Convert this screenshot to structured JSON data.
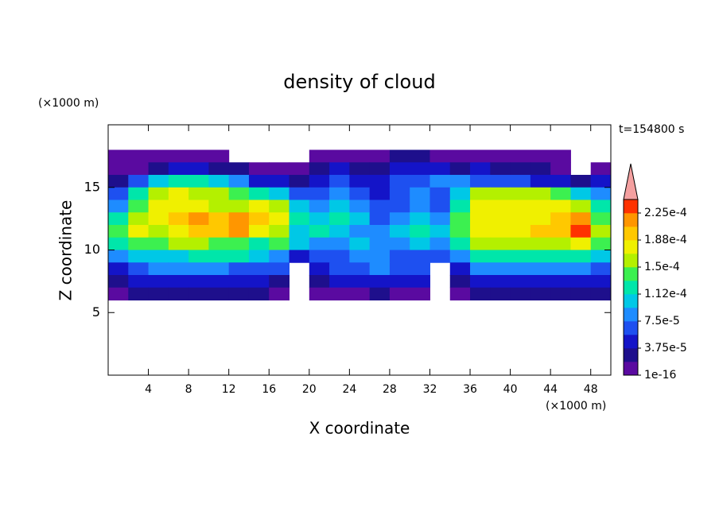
{
  "chart_data": {
    "type": "heatmap",
    "title": "density of cloud",
    "x_label": "X coordinate",
    "y_label": "Z coordinate",
    "x_unit": "(×1000 m)",
    "y_unit": "(×1000 m)",
    "time_label": "t=154800 s",
    "xlim": [
      0,
      50
    ],
    "ylim": [
      0,
      20
    ],
    "xticks": [
      4,
      8,
      12,
      16,
      20,
      24,
      28,
      32,
      36,
      40,
      44,
      48
    ],
    "yticks": [
      5,
      10,
      15
    ],
    "x": [
      1,
      3,
      5,
      7,
      9,
      11,
      13,
      15,
      17,
      19,
      21,
      23,
      25,
      27,
      29,
      31,
      33,
      35,
      37,
      39,
      41,
      43,
      45,
      47,
      49
    ],
    "y": [
      17.5,
      16.5,
      15.5,
      14.5,
      13.5,
      12.5,
      11.5,
      10.5,
      9.5,
      8.5,
      7.5,
      6.5
    ],
    "z": [
      [
        1e-05,
        1e-05,
        1e-05,
        1e-05,
        1e-05,
        1e-05,
        null,
        null,
        null,
        null,
        1e-05,
        1e-05,
        1e-05,
        1e-05,
        3e-05,
        3e-05,
        1e-05,
        1e-05,
        1e-05,
        1e-05,
        1e-05,
        1e-05,
        1e-05,
        null,
        null
      ],
      [
        1e-05,
        1e-05,
        3e-05,
        5e-05,
        5e-05,
        3e-05,
        3e-05,
        1e-05,
        1e-05,
        1e-05,
        3e-05,
        5e-05,
        3e-05,
        3e-05,
        5e-05,
        5e-05,
        5e-05,
        3e-05,
        5e-05,
        3e-05,
        3e-05,
        3e-05,
        1e-05,
        null,
        1e-05
      ],
      [
        3e-05,
        7e-05,
        0.00011,
        0.00012,
        0.00012,
        0.00011,
        9e-05,
        5e-05,
        5e-05,
        3e-05,
        5e-05,
        7e-05,
        5e-05,
        5e-05,
        7e-05,
        7e-05,
        9e-05,
        9e-05,
        7e-05,
        7e-05,
        7e-05,
        5e-05,
        5e-05,
        3e-05,
        5e-05
      ],
      [
        7e-05,
        0.00012,
        0.00016,
        0.00018,
        0.00016,
        0.00016,
        0.00014,
        0.00012,
        0.00011,
        7e-05,
        7e-05,
        9e-05,
        7e-05,
        5e-05,
        7e-05,
        9e-05,
        7e-05,
        0.00011,
        0.00016,
        0.00016,
        0.00016,
        0.00016,
        0.00014,
        0.00011,
        9e-05
      ],
      [
        9e-05,
        0.00014,
        0.00018,
        0.00018,
        0.00018,
        0.00016,
        0.00016,
        0.00018,
        0.00016,
        0.00011,
        9e-05,
        0.00011,
        9e-05,
        7e-05,
        7e-05,
        9e-05,
        7e-05,
        0.00012,
        0.00018,
        0.00018,
        0.00018,
        0.00018,
        0.00018,
        0.00016,
        0.00012
      ],
      [
        0.00012,
        0.00016,
        0.00018,
        0.0002,
        0.00022,
        0.0002,
        0.00022,
        0.0002,
        0.00018,
        0.00012,
        0.00011,
        0.00012,
        0.00011,
        7e-05,
        9e-05,
        0.00011,
        9e-05,
        0.00014,
        0.00018,
        0.00018,
        0.00018,
        0.00018,
        0.0002,
        0.00022,
        0.00014
      ],
      [
        0.00014,
        0.00018,
        0.00016,
        0.00018,
        0.0002,
        0.0002,
        0.00022,
        0.00018,
        0.00016,
        0.00011,
        0.00012,
        0.00011,
        9e-05,
        9e-05,
        0.00011,
        0.00012,
        0.00011,
        0.00014,
        0.00018,
        0.00018,
        0.00018,
        0.0002,
        0.0002,
        0.00023,
        0.00016
      ],
      [
        0.00012,
        0.00014,
        0.00014,
        0.00016,
        0.00016,
        0.00014,
        0.00014,
        0.00012,
        0.00014,
        0.00011,
        9e-05,
        9e-05,
        0.00011,
        9e-05,
        9e-05,
        0.00011,
        9e-05,
        0.00012,
        0.00016,
        0.00016,
        0.00016,
        0.00016,
        0.00016,
        0.00018,
        0.00014
      ],
      [
        9e-05,
        0.00011,
        0.00011,
        0.00011,
        0.00012,
        0.00012,
        0.00012,
        0.00011,
        9e-05,
        5e-05,
        7e-05,
        7e-05,
        9e-05,
        9e-05,
        7e-05,
        7e-05,
        7e-05,
        9e-05,
        0.00012,
        0.00012,
        0.00012,
        0.00012,
        0.00012,
        0.00012,
        0.00011
      ],
      [
        5e-05,
        7e-05,
        9e-05,
        9e-05,
        9e-05,
        9e-05,
        7e-05,
        7e-05,
        7e-05,
        null,
        5e-05,
        7e-05,
        7e-05,
        9e-05,
        7e-05,
        7e-05,
        null,
        5e-05,
        9e-05,
        9e-05,
        9e-05,
        9e-05,
        9e-05,
        9e-05,
        7e-05
      ],
      [
        3e-05,
        5e-05,
        5e-05,
        5e-05,
        5e-05,
        5e-05,
        5e-05,
        5e-05,
        3e-05,
        null,
        3e-05,
        5e-05,
        5e-05,
        5e-05,
        5e-05,
        5e-05,
        null,
        3e-05,
        5e-05,
        5e-05,
        5e-05,
        5e-05,
        5e-05,
        5e-05,
        5e-05
      ],
      [
        1e-05,
        3e-05,
        3e-05,
        3e-05,
        3e-05,
        3e-05,
        3e-05,
        3e-05,
        1e-05,
        null,
        1e-05,
        1e-05,
        1e-05,
        3e-05,
        1e-05,
        1e-05,
        null,
        1e-05,
        3e-05,
        3e-05,
        3e-05,
        3e-05,
        3e-05,
        3e-05,
        3e-05
      ]
    ],
    "clim": [
      1e-16,
      0.00024375
    ],
    "colors": [
      "#5a0aa0",
      "#1e0f8c",
      "#1414c8",
      "#1e50f0",
      "#1e8cff",
      "#00c8e6",
      "#00e6aa",
      "#3cf050",
      "#b4f000",
      "#f0f000",
      "#ffc800",
      "#ff9600",
      "#ff3200"
    ],
    "extend_color": "#f4a0a0",
    "cticks": [
      {
        "value": 1e-16,
        "label": "1e-16"
      },
      {
        "value": 3.75e-05,
        "label": "3.75e-5"
      },
      {
        "value": 7.5e-05,
        "label": "7.5e-5"
      },
      {
        "value": 0.0001125,
        "label": "1.12e-4"
      },
      {
        "value": 0.00015,
        "label": "1.5e-4"
      },
      {
        "value": 0.0001875,
        "label": "1.88e-4"
      },
      {
        "value": 0.000225,
        "label": "2.25e-4"
      }
    ]
  }
}
